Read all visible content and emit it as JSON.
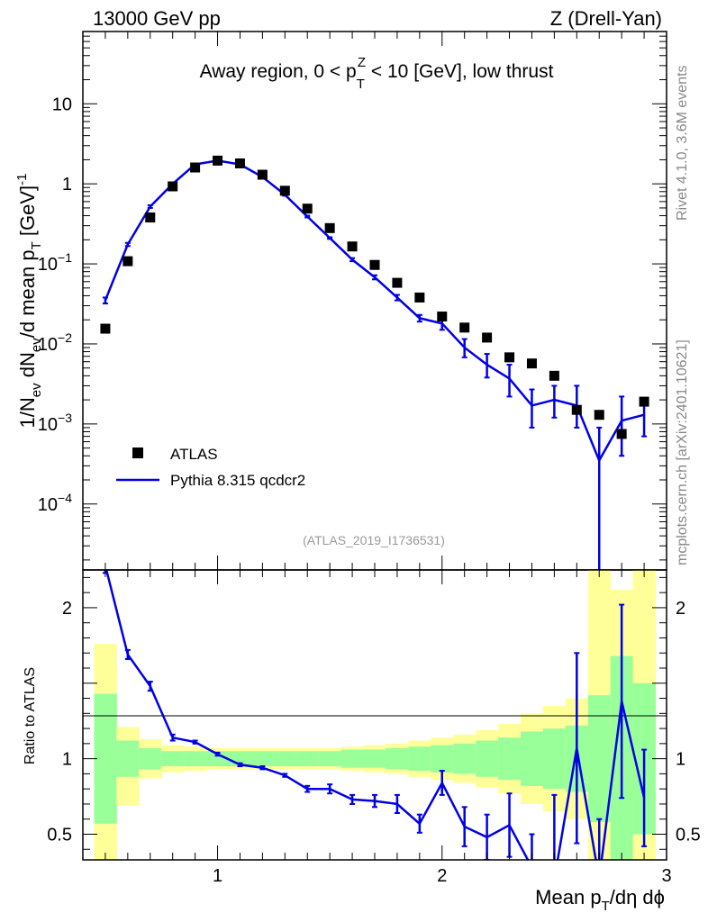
{
  "header": {
    "left": "13000 GeV pp",
    "right": "Z (Drell-Yan)"
  },
  "main_plot": {
    "title_parts": {
      "pre": "Away region, 0 < p",
      "sub": "T",
      "sup": "Z",
      "post": " < 10 [GeV], low thrust"
    },
    "ylabel_parts": {
      "a": "1/N",
      "a_sub": "ev",
      "b": " dN",
      "b_sub": "ev",
      "c": "/d mean p",
      "c_sub": "T",
      "d": " [GeV]",
      "d_sup": "-1"
    },
    "watermark": "(ATLAS_2019_I1736531)",
    "side_text_top": "Rivet 4.1.0,  3.6M events",
    "side_text_bottom": "mcplots.cern.ch [arXiv:2401.10621]",
    "y_ticks": [
      {
        "value": 10,
        "label": "10"
      },
      {
        "value": 1,
        "label": "1"
      },
      {
        "value": 0.1,
        "base": "10",
        "exp": "−1"
      },
      {
        "value": 0.01,
        "base": "10",
        "exp": "−2"
      },
      {
        "value": 0.001,
        "base": "10",
        "exp": "−3"
      },
      {
        "value": 0.0001,
        "base": "10",
        "exp": "−4"
      }
    ]
  },
  "ratio_plot": {
    "ylabel": "Ratio to ATLAS",
    "y_ticks": [
      {
        "value": 2,
        "label": "2"
      },
      {
        "value": 1,
        "label": "1"
      },
      {
        "value": 0.5,
        "label": "0.5"
      }
    ]
  },
  "x_axis": {
    "label_parts": {
      "a": "Mean p",
      "a_sub": "T",
      "b": "/dη dϕ"
    },
    "ticks": [
      {
        "value": 1,
        "label": "1"
      },
      {
        "value": 2,
        "label": "2"
      },
      {
        "value": 3,
        "label": "3"
      }
    ]
  },
  "legend": {
    "data_label": "ATLAS",
    "mc_label": "Pythia 8.315 qcdcr2"
  },
  "colors": {
    "data": "#000000",
    "mc": "#0000e6",
    "band_inner": "#99ff99",
    "band_outer": "#ffff99"
  },
  "chart_data": {
    "type": "scatter",
    "title": "Away region, 0 < pT^Z < 10 [GeV], low thrust",
    "xlabel": "Mean pT/dη dϕ",
    "ylabel": "1/Nev dNev/d mean pT [GeV]^-1",
    "xlim": [
      0.4,
      3.0
    ],
    "ylim": [
      1.5e-05,
      80
    ],
    "yscale": "log",
    "ratio_ylim": [
      0.33,
      2.25
    ],
    "x": [
      0.5,
      0.6,
      0.7,
      0.8,
      0.9,
      1.0,
      1.1,
      1.2,
      1.3,
      1.4,
      1.5,
      1.6,
      1.7,
      1.8,
      1.9,
      2.0,
      2.1,
      2.2,
      2.3,
      2.4,
      2.5,
      2.6,
      2.7,
      2.8,
      2.9
    ],
    "series": [
      {
        "name": "ATLAS",
        "values": [
          0.0155,
          0.108,
          0.38,
          0.93,
          1.6,
          1.95,
          1.8,
          1.3,
          0.82,
          0.49,
          0.28,
          0.165,
          0.097,
          0.058,
          0.038,
          0.022,
          0.016,
          0.012,
          0.0068,
          0.0057,
          0.004,
          0.0015,
          0.0013,
          0.00075,
          0.0019
        ]
      },
      {
        "name": "Pythia 8.315 qcdcr2",
        "values": [
          0.035,
          0.175,
          0.52,
          1.0,
          1.75,
          1.95,
          1.75,
          1.22,
          0.73,
          0.39,
          0.21,
          0.113,
          0.068,
          0.038,
          0.021,
          0.018,
          0.009,
          0.0055,
          0.0037,
          0.0017,
          0.002,
          0.0017,
          0.00035,
          0.0011,
          0.0013
        ],
        "err_up": [
          0.038,
          0.183,
          0.54,
          1.03,
          1.8,
          2.0,
          1.8,
          1.25,
          0.75,
          0.4,
          0.215,
          0.118,
          0.072,
          0.041,
          0.023,
          0.021,
          0.0115,
          0.0075,
          0.0055,
          0.0027,
          0.003,
          0.003,
          0.0009,
          0.0022,
          0.0021
        ],
        "err_down": [
          0.032,
          0.167,
          0.5,
          0.97,
          1.7,
          1.9,
          1.7,
          1.19,
          0.71,
          0.38,
          0.205,
          0.108,
          0.064,
          0.035,
          0.019,
          0.015,
          0.0068,
          0.0038,
          0.0022,
          0.0009,
          0.0012,
          0.0009,
          1e-06,
          0.0004,
          0.0007
        ]
      }
    ],
    "ratio": {
      "x": [
        0.5,
        0.6,
        0.7,
        0.8,
        0.9,
        1.0,
        1.1,
        1.2,
        1.3,
        1.4,
        1.5,
        1.6,
        1.7,
        1.8,
        1.9,
        2.0,
        2.1,
        2.2,
        2.3,
        2.4,
        2.5,
        2.6,
        2.7,
        2.8,
        2.9
      ],
      "values": [
        2.28,
        1.69,
        1.48,
        1.14,
        1.11,
        1.03,
        0.96,
        0.94,
        0.89,
        0.8,
        0.8,
        0.73,
        0.72,
        0.7,
        0.57,
        0.84,
        0.55,
        0.48,
        0.56,
        0.28,
        0.2,
        1.07,
        0.2,
        1.38,
        0.74
      ],
      "err_up": [
        2.33,
        1.72,
        1.51,
        1.16,
        1.12,
        1.04,
        0.97,
        0.95,
        0.9,
        0.82,
        0.83,
        0.76,
        0.76,
        0.76,
        0.63,
        0.92,
        0.68,
        0.63,
        0.77,
        0.5,
        0.76,
        1.7,
        0.6,
        2.02,
        1.06
      ],
      "err_down": [
        2.23,
        1.66,
        1.45,
        1.12,
        1.1,
        1.02,
        0.95,
        0.93,
        0.88,
        0.78,
        0.77,
        0.7,
        0.68,
        0.64,
        0.51,
        0.76,
        0.42,
        0.33,
        0.35,
        0.1,
        0.0,
        0.44,
        0.0,
        0.74,
        0.42
      ],
      "band_edges": [
        0.45,
        0.55,
        0.65,
        0.75,
        0.85,
        0.95,
        1.05,
        1.15,
        1.25,
        1.35,
        1.45,
        1.55,
        1.65,
        1.75,
        1.85,
        1.95,
        2.05,
        2.15,
        2.25,
        2.35,
        2.45,
        2.55,
        2.65,
        2.75,
        2.85,
        2.95
      ],
      "band_inner_hi": [
        1.43,
        1.12,
        1.07,
        1.05,
        1.05,
        1.05,
        1.05,
        1.05,
        1.05,
        1.05,
        1.05,
        1.06,
        1.06,
        1.07,
        1.08,
        1.09,
        1.1,
        1.12,
        1.14,
        1.18,
        1.2,
        1.22,
        1.42,
        1.68,
        1.5
      ],
      "band_inner_lo": [
        0.57,
        0.88,
        0.93,
        0.95,
        0.95,
        0.95,
        0.95,
        0.95,
        0.95,
        0.95,
        0.95,
        0.94,
        0.94,
        0.93,
        0.92,
        0.91,
        0.9,
        0.88,
        0.86,
        0.82,
        0.8,
        0.78,
        0.58,
        0.32,
        0.5
      ],
      "band_outer_hi": [
        1.76,
        1.21,
        1.13,
        1.09,
        1.08,
        1.07,
        1.07,
        1.07,
        1.07,
        1.07,
        1.07,
        1.08,
        1.09,
        1.1,
        1.12,
        1.14,
        1.16,
        1.19,
        1.23,
        1.3,
        1.35,
        1.4,
        2.33,
        2.12,
        2.25
      ],
      "band_outer_lo": [
        0.3,
        0.69,
        0.87,
        0.91,
        0.92,
        0.93,
        0.93,
        0.93,
        0.93,
        0.93,
        0.93,
        0.92,
        0.91,
        0.9,
        0.88,
        0.86,
        0.84,
        0.81,
        0.77,
        0.7,
        0.65,
        0.6,
        0.3,
        0.3,
        0.3
      ]
    }
  }
}
